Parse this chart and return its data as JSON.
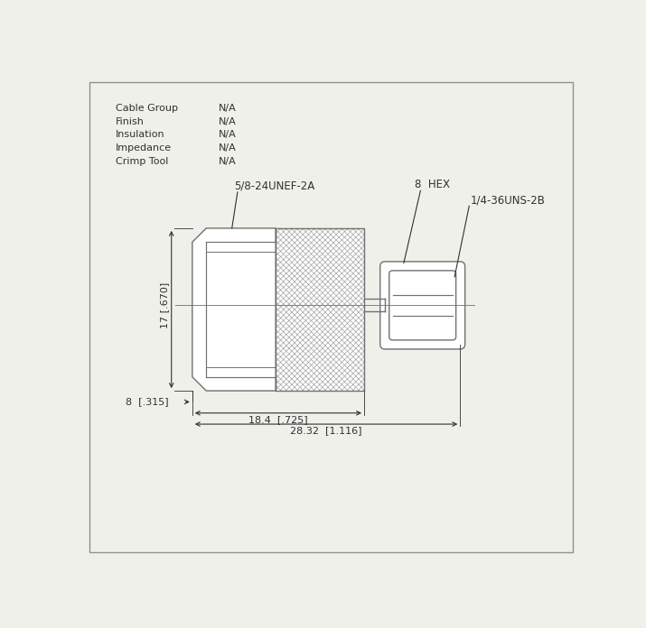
{
  "bg_color": "#f0f0eb",
  "line_color": "#707070",
  "text_color": "#303030",
  "properties": [
    [
      "Cable Group",
      "N/A"
    ],
    [
      "Finish",
      "N/A"
    ],
    [
      "Insulation",
      "N/A"
    ],
    [
      "Impedance",
      "N/A"
    ],
    [
      "Crimp Tool",
      "N/A"
    ]
  ],
  "thread_label_left": "5/8-24UNEF-2A",
  "thread_label_right": "1/4-36UNS-2B",
  "hex_label": "8  HEX",
  "dim_vertical": "17 [.670]",
  "dim_bottom_left": "8  [.315]",
  "dim_18": "18.4  [.725]",
  "dim_28": "28.32  [1.116]",
  "border_color": "#909090"
}
